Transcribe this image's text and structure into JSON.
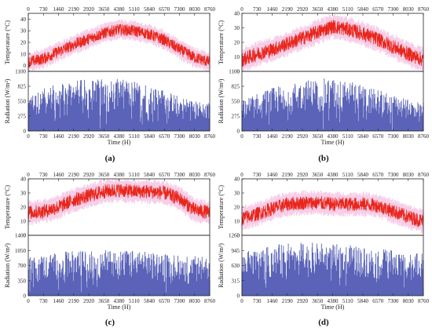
{
  "chart_data": [
    {
      "panel": "(a)",
      "type": "line",
      "xlabel": "Time (H)",
      "x_ticks": [
        0,
        730,
        1460,
        2190,
        2920,
        3650,
        4380,
        5110,
        5840,
        6570,
        7300,
        8030,
        8760
      ],
      "xlim": [
        0,
        8760
      ],
      "top": {
        "ylabel": "Temperature (°C)",
        "ylim": [
          -5,
          45
        ],
        "y_ticks": [
          0,
          10,
          20,
          30,
          40
        ],
        "series": [
          {
            "type": "line",
            "color": "#e8261c",
            "x": [
              0,
              730,
              1460,
              2190,
              2920,
              3650,
              4380,
              5110,
              5840,
              6570,
              7300,
              8030,
              8760
            ],
            "values": [
              3,
              6,
              12,
              18,
              23,
              28,
              31,
              30,
              27,
              22,
              14,
              7,
              3
            ]
          }
        ]
      },
      "bottom": {
        "ylabel": "Radiation (W/m²)",
        "ylim": [
          0,
          1100
        ],
        "y_ticks": [
          0,
          275,
          550,
          825,
          1100
        ],
        "series": [
          {
            "type": "area",
            "color": "#5a63b8",
            "x": [
              0,
              730,
              1460,
              2190,
              2920,
              3650,
              4380,
              5110,
              5840,
              6570,
              7300,
              8030,
              8760
            ],
            "values": [
              650,
              780,
              900,
              940,
              960,
              980,
              960,
              930,
              860,
              760,
              650,
              560,
              520
            ]
          }
        ]
      }
    },
    {
      "panel": "(b)",
      "type": "line",
      "xlabel": "Time (H)",
      "x_ticks": [
        0,
        730,
        1460,
        2190,
        2920,
        3650,
        4380,
        5110,
        5840,
        6570,
        7300,
        8030,
        8760
      ],
      "xlim": [
        0,
        8760
      ],
      "top": {
        "ylabel": "Temperature (°C)",
        "ylim": [
          0,
          40
        ],
        "y_ticks": [
          0,
          10,
          20,
          30,
          40
        ],
        "series": [
          {
            "type": "line",
            "color": "#e8261c",
            "x": [
              0,
              730,
              1460,
              2190,
              2920,
              3650,
              4380,
              5110,
              5840,
              6570,
              7300,
              8030,
              8760
            ],
            "values": [
              8,
              12,
              15,
              19,
              23,
              27,
              31,
              29,
              26,
              22,
              17,
              12,
              8
            ]
          }
        ]
      },
      "bottom": {
        "ylabel": "Radiation (W/m²)",
        "ylim": [
          0,
          1100
        ],
        "y_ticks": [
          0,
          275,
          550,
          825,
          1100
        ],
        "series": [
          {
            "type": "area",
            "color": "#5a63b8",
            "x": [
              0,
              730,
              1460,
              2190,
              2920,
              3650,
              4380,
              5110,
              5840,
              6570,
              7300,
              8030,
              8760
            ],
            "values": [
              560,
              700,
              800,
              880,
              930,
              980,
              960,
              920,
              860,
              760,
              660,
              580,
              540
            ]
          }
        ]
      }
    },
    {
      "panel": "(c)",
      "type": "line",
      "xlabel": "Time (H)",
      "x_ticks": [
        0,
        730,
        1460,
        2190,
        2920,
        3650,
        4380,
        5110,
        5840,
        6570,
        7300,
        8030,
        8760
      ],
      "xlim": [
        0,
        8760
      ],
      "top": {
        "ylabel": "Temperature (°C)",
        "ylim": [
          0,
          40
        ],
        "y_ticks": [
          0,
          10,
          20,
          30,
          40
        ],
        "series": [
          {
            "type": "line",
            "color": "#e8261c",
            "x": [
              0,
              730,
              1460,
              2190,
              2920,
              3650,
              4380,
              5110,
              5840,
              6570,
              7300,
              8030,
              8760
            ],
            "values": [
              16,
              17,
              20,
              25,
              28,
              31,
              32,
              31,
              31,
              30,
              26,
              18,
              16
            ]
          }
        ]
      },
      "bottom": {
        "ylabel": "Radiation (W/m²)",
        "ylim": [
          0,
          1400
        ],
        "y_ticks": [
          0,
          350,
          700,
          1050,
          1400
        ],
        "series": [
          {
            "type": "area",
            "color": "#5a63b8",
            "x": [
              0,
              730,
              1460,
              2190,
              2920,
              3650,
              4380,
              5110,
              5840,
              6570,
              7300,
              8030,
              8760
            ],
            "values": [
              900,
              960,
              1000,
              1050,
              1050,
              1060,
              1080,
              1050,
              1020,
              980,
              950,
              920,
              900
            ]
          }
        ]
      }
    },
    {
      "panel": "(d)",
      "type": "line",
      "xlabel": "Time (H)",
      "x_ticks": [
        0,
        730,
        1460,
        2190,
        2920,
        3650,
        4380,
        5110,
        5840,
        6570,
        7300,
        8030,
        8760
      ],
      "xlim": [
        0,
        8760
      ],
      "top": {
        "ylabel": "Temperature (°C)",
        "ylim": [
          0,
          40
        ],
        "y_ticks": [
          0,
          10,
          20,
          30,
          40
        ],
        "series": [
          {
            "type": "line",
            "color": "#e8261c",
            "x": [
              0,
              730,
              1460,
              2190,
              2920,
              3650,
              4380,
              5110,
              5840,
              6570,
              7300,
              8030,
              8760
            ],
            "values": [
              12,
              15,
              19,
              22,
              23,
              23,
              22,
              22,
              22,
              21,
              17,
              13,
              10
            ]
          }
        ]
      },
      "bottom": {
        "ylabel": "Radiation (W/m²)",
        "ylim": [
          0,
          1260
        ],
        "y_ticks": [
          0,
          315,
          630,
          945,
          1260
        ],
        "series": [
          {
            "type": "area",
            "color": "#5a63b8",
            "x": [
              0,
              730,
              1460,
              2190,
              2920,
              3650,
              4380,
              5110,
              5840,
              6570,
              7300,
              8030,
              8760
            ],
            "values": [
              900,
              980,
              1050,
              1100,
              1120,
              1100,
              1080,
              1060,
              1030,
              990,
              950,
              900,
              880
            ]
          }
        ]
      }
    }
  ]
}
